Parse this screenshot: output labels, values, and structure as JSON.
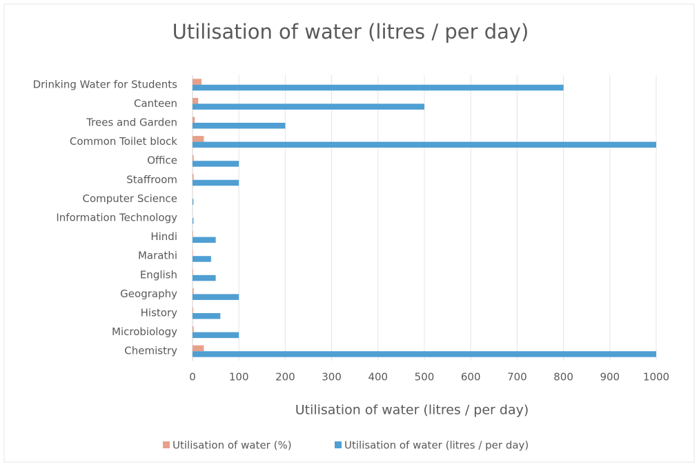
{
  "chart_data": {
    "type": "hbar",
    "title": "Utilisation of water (litres / per day)",
    "x_label": "Utilisation of water (litres / per day)",
    "categories": [
      "Drinking Water for Students",
      "Canteen",
      "Trees and Garden",
      "Common Toilet block",
      "Office",
      "Staffroom",
      "Computer Science",
      "Information Technology",
      "Hindi",
      "Marathi",
      "English",
      "Geography",
      "History",
      "Microbiology",
      "Chemistry"
    ],
    "series": [
      {
        "name": "Utilisation of water (%)",
        "color": "#e8a08a",
        "values": [
          19.5,
          12.2,
          4.9,
          24.4,
          2.4,
          2.4,
          0.05,
          0.05,
          1.2,
          1.0,
          1.2,
          2.4,
          1.5,
          2.4,
          24.4
        ]
      },
      {
        "name": "Utilisation of water (litres / per day)",
        "color": "#4f9fd2",
        "values": [
          800,
          500,
          200,
          1000,
          100,
          100,
          2,
          2,
          50,
          40,
          50,
          100,
          60,
          100,
          1000
        ]
      }
    ],
    "xlim": [
      0,
      1000
    ],
    "xticks": [
      0,
      100,
      200,
      300,
      400,
      500,
      600,
      700,
      800,
      900,
      1000
    ],
    "grid": true,
    "legend": "bottom"
  }
}
